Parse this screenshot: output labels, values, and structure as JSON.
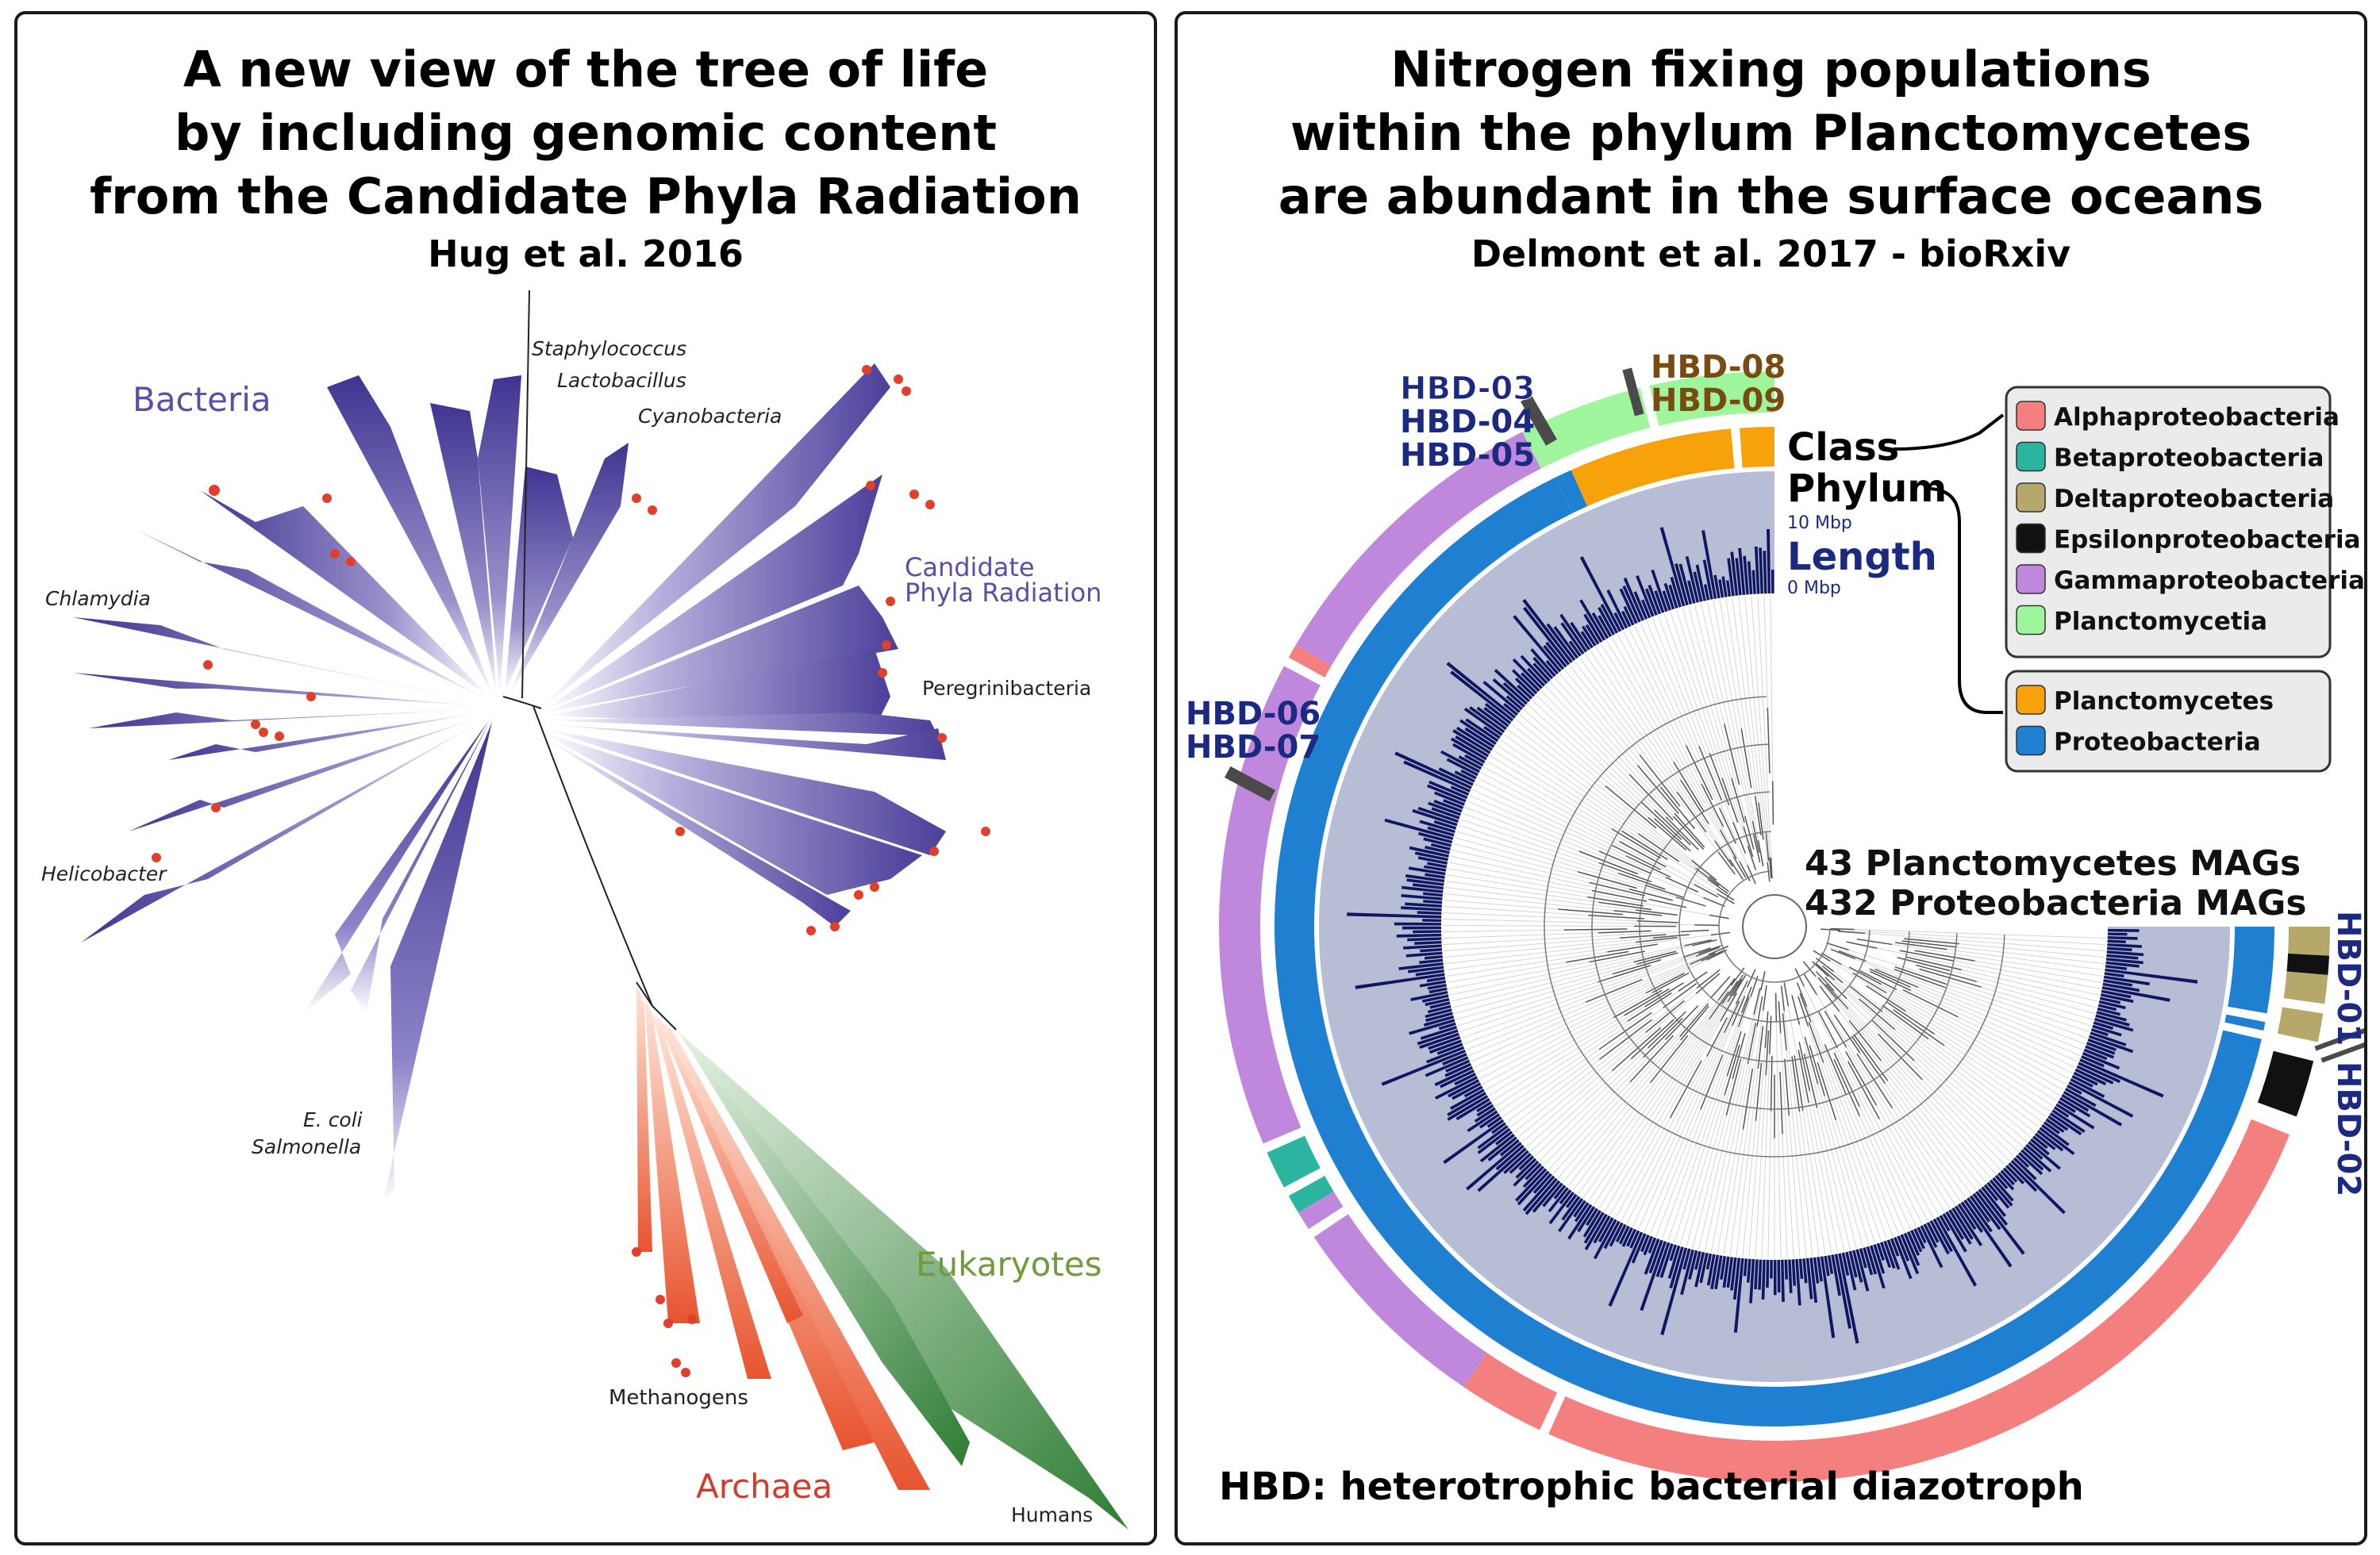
{
  "left": {
    "title_lines": [
      "A new view of the tree of life",
      "by including genomic content",
      "from the Candidate Phyla Radiation"
    ],
    "citation": "Hug et al. 2016",
    "domains": {
      "bacteria": "Bacteria",
      "cpr_line1": "Candidate",
      "cpr_line2": "Phyla Radiation",
      "eukaryotes": "Eukaryotes",
      "archaea": "Archaea"
    },
    "taxa": {
      "staphylococcus": "Staphylococcus",
      "lactobacillus": "Lactobacillus",
      "cyanobacteria": "Cyanobacteria",
      "chlamydia": "Chlamydia",
      "peregrinibacteria": "Peregrinibacteria",
      "helicobacter": "Helicobacter",
      "ecoli": "E. coli",
      "salmonella": "Salmonella",
      "methanogens": "Methanogens",
      "humans": "Humans"
    },
    "colors": {
      "bacteria": "#4b3f9a",
      "archaea": "#e8542f",
      "eukaryotes": "#2e8b3e",
      "dots": "#e0402a"
    }
  },
  "right": {
    "title_lines": [
      "Nitrogen fixing populations",
      "within the phylum Planctomycetes",
      "are abundant in the surface oceans"
    ],
    "citation": "Delmont et al. 2017 - bioRxiv",
    "ring_labels": {
      "class": "Class",
      "phylum": "Phylum",
      "length": "Length",
      "length_max": "10 Mbp",
      "length_min": "0 Mbp"
    },
    "hbd": {
      "a": "HBD-03",
      "b": "HBD-04",
      "c": "HBD-05",
      "d": "HBD-08",
      "e": "HBD-09",
      "f": "HBD-06",
      "g": "HBD-07",
      "h": "HBD-01",
      "i": "HBD-02"
    },
    "counts": {
      "planctomycetes": "43 Planctomycetes MAGs",
      "proteobacteria": "432 Proteobacteria MAGs"
    },
    "legend_class": [
      {
        "label": "Alphaproteobacteria",
        "color": "#f47f7f"
      },
      {
        "label": "Betaproteobacteria",
        "color": "#2bb5a0"
      },
      {
        "label": "Deltaproteobacteria",
        "color": "#b5a86a"
      },
      {
        "label": "Epsilonproteobacteria",
        "color": "#111111"
      },
      {
        "label": "Gammaproteobacteria",
        "color": "#c088dc"
      },
      {
        "label": "Planctomycetia",
        "color": "#9ef59c"
      }
    ],
    "legend_phylum": [
      {
        "label": "Planctomycetes",
        "color": "#f7a20a"
      },
      {
        "label": "Proteobacteria",
        "color": "#1f7fd0"
      }
    ],
    "footnote": "HBD: heterotrophic bacterial diazotroph",
    "colors": {
      "hbd_blue": "#1b2a80",
      "hbd_brown": "#7a4b10",
      "length_bg": "#b8bdd6",
      "length_bar": "#111660"
    }
  }
}
